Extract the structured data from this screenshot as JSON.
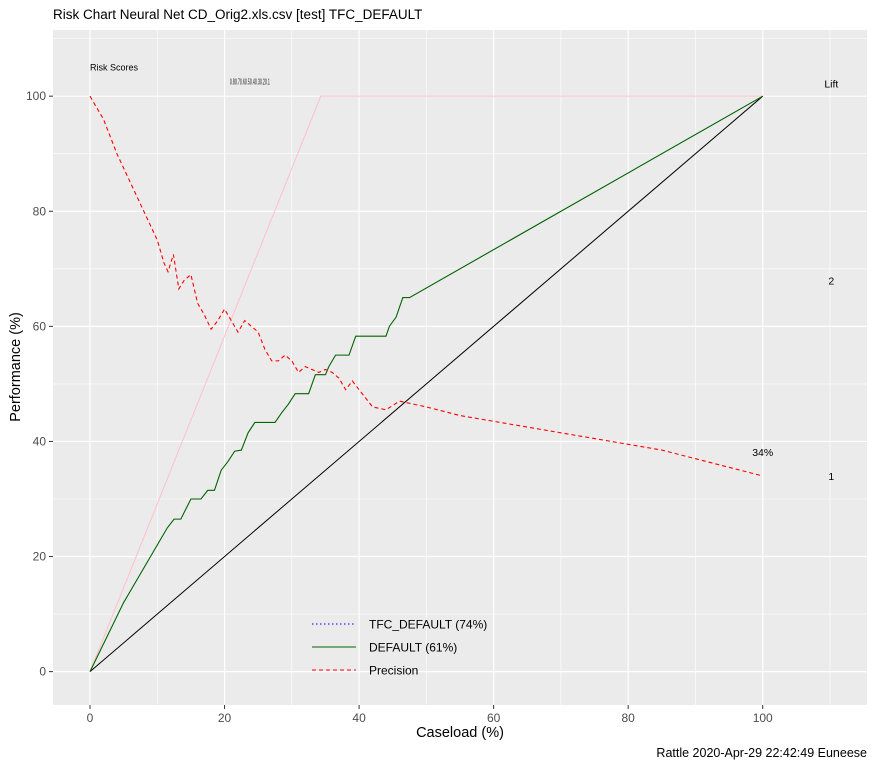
{
  "chart_data": {
    "type": "line",
    "title": "Risk Chart Neural Net CD_Orig2.xls.csv [test] TFC_DEFAULT",
    "xlabel": "Caseload (%)",
    "ylabel": "Performance (%)",
    "xlim": [
      -5.5,
      115.5
    ],
    "ylim": [
      -5.8,
      111.5
    ],
    "x_ticks": [
      0,
      20,
      40,
      60,
      80,
      100
    ],
    "y_ticks": [
      0,
      20,
      40,
      60,
      80,
      100
    ],
    "grid": true,
    "legend_position": "bottom-center",
    "colors": {
      "panel": "#ebebeb",
      "grid": "#ffffff",
      "tfc_default": "#0000ff",
      "default": "#006400",
      "precision": "#ff0000",
      "optimal": "#ffc0cb",
      "baseline": "#000000"
    },
    "series": [
      {
        "name": "TFC_DEFAULT (74%)",
        "style": "dotted",
        "points": [
          [
            0,
            0
          ]
        ]
      },
      {
        "name": "DEFAULT (61%)",
        "style": "solid",
        "points": [
          [
            0,
            0
          ],
          [
            5,
            12
          ],
          [
            10,
            22
          ],
          [
            11.5,
            25
          ],
          [
            12.5,
            26.5
          ],
          [
            13.5,
            26.5
          ],
          [
            15,
            30
          ],
          [
            16.5,
            30
          ],
          [
            17.5,
            31.5
          ],
          [
            18.5,
            31.5
          ],
          [
            19.5,
            35
          ],
          [
            20.5,
            36.5
          ],
          [
            21.5,
            38.3
          ],
          [
            22.5,
            38.5
          ],
          [
            23.5,
            41.5
          ],
          [
            24.5,
            43.3
          ],
          [
            27.5,
            43.3
          ],
          [
            28.5,
            45
          ],
          [
            29.5,
            46.5
          ],
          [
            30.5,
            48.3
          ],
          [
            32.5,
            48.3
          ],
          [
            33.5,
            51.6
          ],
          [
            35,
            51.6
          ],
          [
            35.5,
            53
          ],
          [
            36.5,
            55
          ],
          [
            38.5,
            55
          ],
          [
            39.5,
            58.3
          ],
          [
            44,
            58.3
          ],
          [
            44.5,
            60
          ],
          [
            45.5,
            61.6
          ],
          [
            46.5,
            65
          ],
          [
            47.5,
            65
          ],
          [
            100,
            100
          ]
        ]
      },
      {
        "name": "Precision",
        "style": "dashed",
        "points": [
          [
            0,
            100
          ],
          [
            2,
            96
          ],
          [
            4,
            90
          ],
          [
            6,
            85
          ],
          [
            8,
            80
          ],
          [
            10,
            75
          ],
          [
            11,
            71
          ],
          [
            11.6,
            69.5
          ],
          [
            12.4,
            72.5
          ],
          [
            13.2,
            66.5
          ],
          [
            14,
            68
          ],
          [
            15,
            69
          ],
          [
            16,
            64
          ],
          [
            17,
            62
          ],
          [
            18,
            59.5
          ],
          [
            19,
            61
          ],
          [
            20,
            63
          ],
          [
            21,
            61
          ],
          [
            22,
            59
          ],
          [
            23,
            61
          ],
          [
            24,
            60
          ],
          [
            25,
            59
          ],
          [
            26,
            56
          ],
          [
            27,
            54
          ],
          [
            28,
            54
          ],
          [
            29,
            55
          ],
          [
            30,
            54
          ],
          [
            31,
            52
          ],
          [
            32,
            53
          ],
          [
            33,
            52.5
          ],
          [
            34,
            52
          ],
          [
            35,
            52.5
          ],
          [
            36,
            52
          ],
          [
            37,
            51
          ],
          [
            38,
            49
          ],
          [
            39,
            50.5
          ],
          [
            40,
            49
          ],
          [
            42,
            46
          ],
          [
            44,
            45.5
          ],
          [
            46,
            47
          ],
          [
            48,
            46.5
          ],
          [
            50,
            46
          ],
          [
            55,
            44.5
          ],
          [
            60,
            43.5
          ],
          [
            65,
            42.5
          ],
          [
            70,
            41.5
          ],
          [
            75,
            40.5
          ],
          [
            80,
            39.5
          ],
          [
            85,
            38.5
          ],
          [
            90,
            37
          ],
          [
            95,
            35.5
          ],
          [
            100,
            34
          ]
        ]
      },
      {
        "name": "optimal",
        "style": "solid",
        "points": [
          [
            0,
            0
          ],
          [
            34.3,
            100
          ],
          [
            100,
            100
          ]
        ]
      },
      {
        "name": "baseline",
        "style": "solid",
        "points": [
          [
            0,
            0
          ],
          [
            100,
            100
          ]
        ]
      }
    ],
    "annotations": {
      "risk_scores_label": "Risk Scores",
      "risk_scores_cluster": "0.80.70.60.50.40.30.20.1",
      "precision_end_label": "34%",
      "lift_label": "Lift",
      "lift_ticks": [
        {
          "label": "2",
          "y": 68
        },
        {
          "label": "1",
          "y": 34
        }
      ]
    },
    "footer": "Rattle 2020-Apr-29 22:42:49 Euneese"
  }
}
